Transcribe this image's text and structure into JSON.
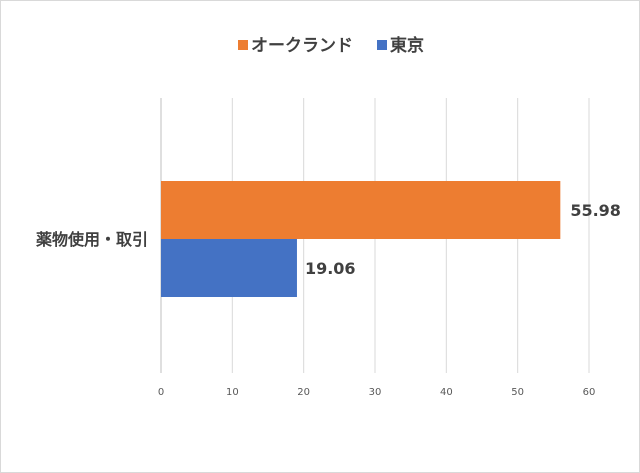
{
  "chart_data": {
    "type": "bar",
    "orientation": "horizontal",
    "categories": [
      "薬物使用・取引"
    ],
    "series": [
      {
        "name": "オークランド",
        "values": [
          55.98
        ],
        "color": "#ED7D31"
      },
      {
        "name": "東京",
        "values": [
          19.06
        ],
        "color": "#4472C4"
      }
    ],
    "xlim": [
      0,
      60
    ],
    "xticks": [
      0,
      10,
      20,
      30,
      40,
      50,
      60
    ],
    "grid": true,
    "legend_position": "top",
    "data_labels": [
      "55.98",
      "19.06"
    ]
  }
}
